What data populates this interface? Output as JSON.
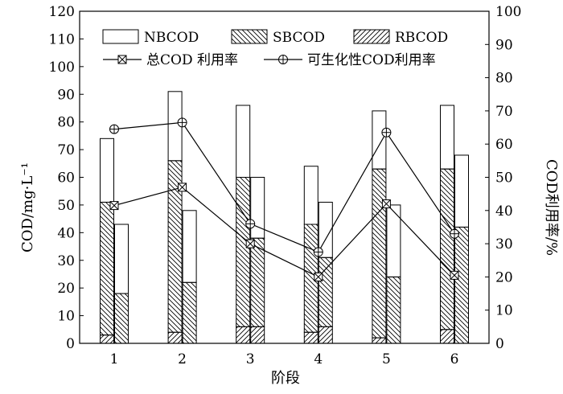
{
  "chart_data": {
    "type": "bar",
    "categories": [
      "1",
      "2",
      "3",
      "4",
      "5",
      "6"
    ],
    "xlabel": "阶段",
    "ylabel": "COD/mg·L⁻¹",
    "y2label": "COD利用率/%",
    "ylim": [
      0,
      120
    ],
    "y2lim": [
      0,
      100
    ],
    "yticks": [
      "0",
      "10",
      "20",
      "30",
      "40",
      "50",
      "60",
      "70",
      "80",
      "90",
      "100",
      "110",
      "120"
    ],
    "y2ticks": [
      "0",
      "10",
      "20",
      "30",
      "40",
      "50",
      "60",
      "70",
      "80",
      "90",
      "100"
    ],
    "legend": {
      "placement": "top",
      "bars": [
        "NBCOD",
        "SBCOD",
        "RBCOD"
      ],
      "lines": [
        "总COD 利用率",
        "可生化性COD利用率"
      ]
    },
    "bar_groups": [
      {
        "category": "1",
        "bars": [
          {
            "total": 74,
            "sb_top": 51,
            "rb_top": 3
          },
          {
            "total": 43,
            "sb_top": 18,
            "rb_top": 0
          }
        ]
      },
      {
        "category": "2",
        "bars": [
          {
            "total": 91,
            "sb_top": 66,
            "rb_top": 4
          },
          {
            "total": 48,
            "sb_top": 22,
            "rb_top": 0
          }
        ]
      },
      {
        "category": "3",
        "bars": [
          {
            "total": 86,
            "sb_top": 60,
            "rb_top": 6
          },
          {
            "total": 60,
            "sb_top": 38,
            "rb_top": 6
          }
        ]
      },
      {
        "category": "4",
        "bars": [
          {
            "total": 64,
            "sb_top": 43,
            "rb_top": 4
          },
          {
            "total": 51,
            "sb_top": 31,
            "rb_top": 6
          }
        ]
      },
      {
        "category": "5",
        "bars": [
          {
            "total": 84,
            "sb_top": 63,
            "rb_top": 2
          },
          {
            "total": 50,
            "sb_top": 24,
            "rb_top": 0
          }
        ]
      },
      {
        "category": "6",
        "bars": [
          {
            "total": 86,
            "sb_top": 63,
            "rb_top": 5
          },
          {
            "total": 68,
            "sb_top": 42,
            "rb_top": 0
          }
        ]
      }
    ],
    "line_series": [
      {
        "name": "总COD 利用率",
        "marker": "boxed-x",
        "values": [
          41.5,
          47,
          30,
          20,
          42,
          20.5
        ]
      },
      {
        "name": "可生化性COD利用率",
        "marker": "circle-plus",
        "values": [
          64.5,
          66.5,
          36,
          27.5,
          63.5,
          33
        ]
      }
    ]
  }
}
